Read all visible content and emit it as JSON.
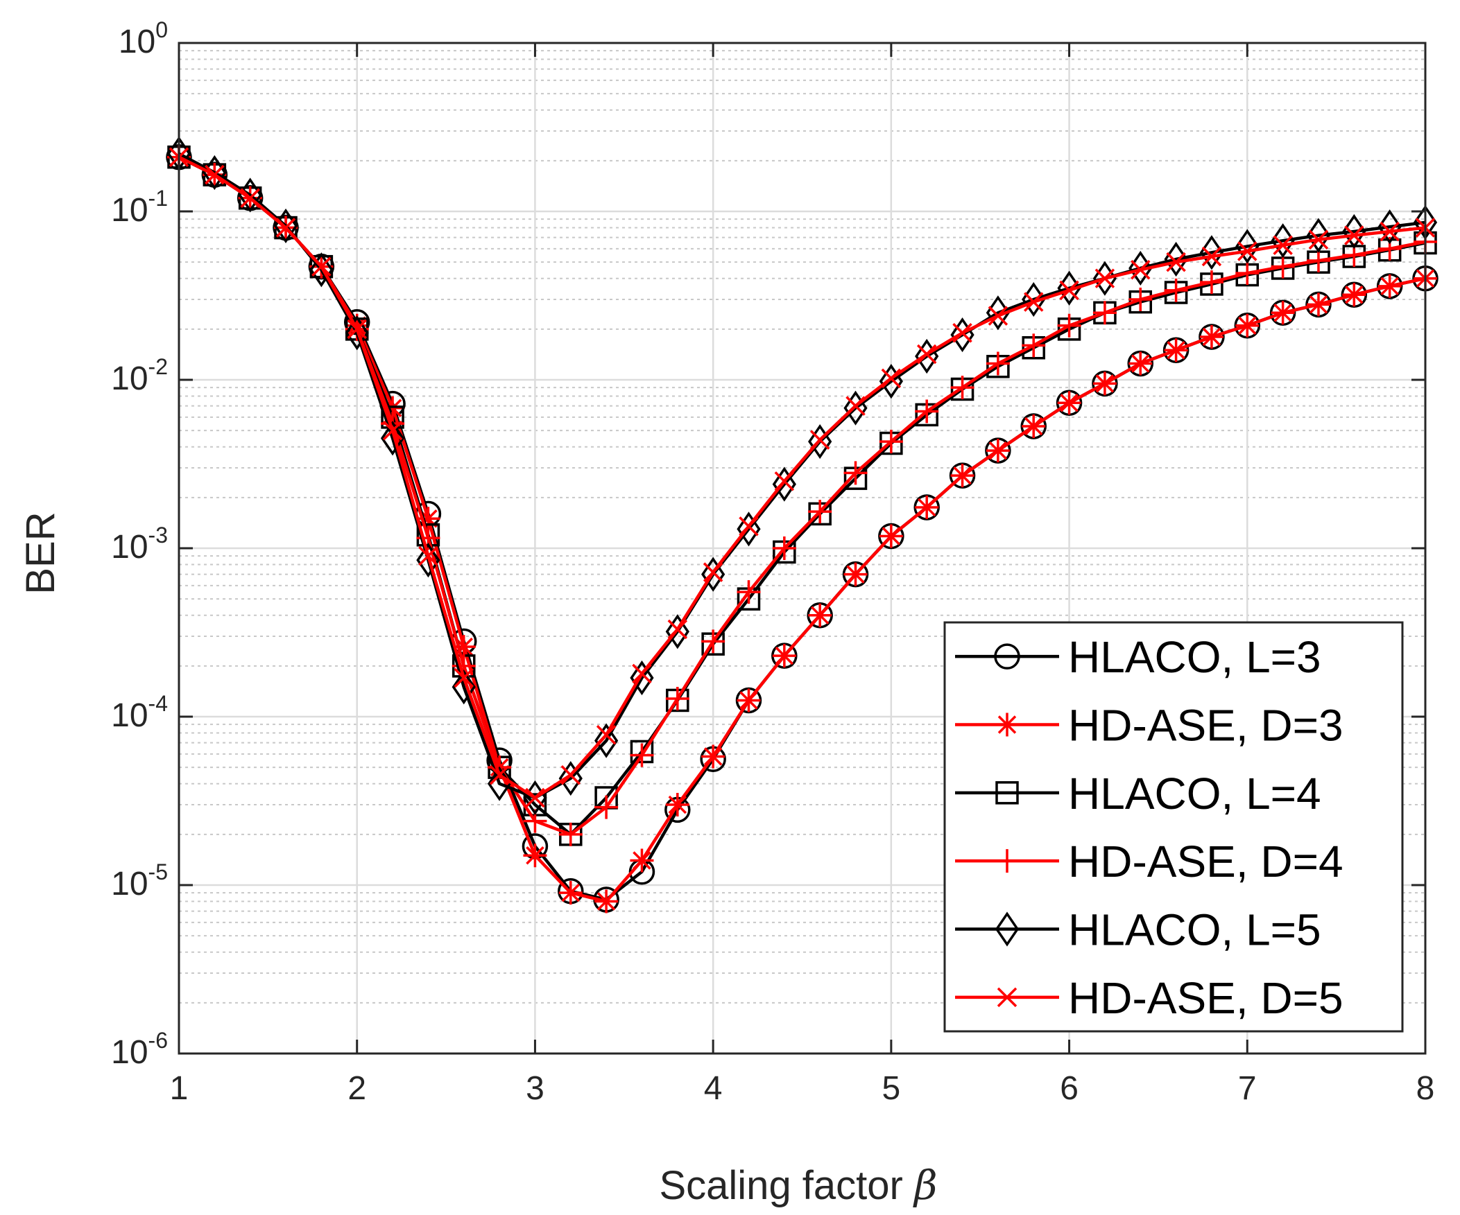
{
  "chart_data": {
    "type": "line",
    "title": "",
    "xlabel": "Scaling factor",
    "xlabel_symbol": "β",
    "ylabel": "BER",
    "xscale": "linear",
    "yscale": "log",
    "xlim": [
      1,
      8
    ],
    "ylim": [
      1e-06,
      1
    ],
    "grid": true,
    "minor_grid_y": true,
    "legend_position": "bottom-right",
    "x_ticks": [
      1,
      2,
      3,
      4,
      5,
      6,
      7,
      8
    ],
    "y_ticks": [
      {
        "base": "10",
        "exp": "-6"
      },
      {
        "base": "10",
        "exp": "-5"
      },
      {
        "base": "10",
        "exp": "-4"
      },
      {
        "base": "10",
        "exp": "-3"
      },
      {
        "base": "10",
        "exp": "-2"
      },
      {
        "base": "10",
        "exp": "-1"
      },
      {
        "base": "10",
        "exp": "0"
      }
    ],
    "x": [
      1.0,
      1.2,
      1.4,
      1.6,
      1.8,
      2.0,
      2.2,
      2.4,
      2.6,
      2.8,
      3.0,
      3.2,
      3.4,
      3.6,
      3.8,
      4.0,
      4.2,
      4.4,
      4.6,
      4.8,
      5.0,
      5.2,
      5.4,
      5.6,
      5.8,
      6.0,
      6.2,
      6.4,
      6.6,
      6.8,
      7.0,
      7.2,
      7.4,
      7.6,
      7.8,
      8.0
    ],
    "series": [
      {
        "name": "HLACO, L=3",
        "color": "#000000",
        "marker": "circle",
        "values": [
          0.21,
          0.165,
          0.12,
          0.08,
          0.047,
          0.022,
          0.0072,
          0.0016,
          0.00028,
          5.5e-05,
          1.7e-05,
          9.2e-06,
          8.2e-06,
          1.2e-05,
          2.8e-05,
          5.6e-05,
          0.000125,
          0.00023,
          0.0004,
          0.0007,
          0.00118,
          0.00175,
          0.0027,
          0.0038,
          0.0053,
          0.0073,
          0.0095,
          0.0125,
          0.015,
          0.018,
          0.021,
          0.025,
          0.028,
          0.032,
          0.036,
          0.04
        ]
      },
      {
        "name": "HD-ASE, D=3",
        "color": "#ff0000",
        "marker": "asterisk",
        "values": [
          0.21,
          0.165,
          0.12,
          0.08,
          0.047,
          0.021,
          0.0068,
          0.0015,
          0.00026,
          5e-05,
          1.5e-05,
          9e-06,
          8e-06,
          1.4e-05,
          3e-05,
          5.8e-05,
          0.000125,
          0.00023,
          0.0004,
          0.0007,
          0.00118,
          0.00175,
          0.0027,
          0.0038,
          0.0053,
          0.0073,
          0.0095,
          0.0125,
          0.015,
          0.018,
          0.021,
          0.025,
          0.028,
          0.032,
          0.036,
          0.04
        ]
      },
      {
        "name": "HLACO, L=4",
        "color": "#000000",
        "marker": "square",
        "values": [
          0.21,
          0.165,
          0.12,
          0.08,
          0.047,
          0.02,
          0.006,
          0.0012,
          0.0002,
          5e-05,
          3e-05,
          2e-05,
          3.3e-05,
          6.2e-05,
          0.000125,
          0.00027,
          0.0005,
          0.00095,
          0.0016,
          0.0026,
          0.0042,
          0.0062,
          0.0088,
          0.012,
          0.0155,
          0.02,
          0.025,
          0.029,
          0.033,
          0.037,
          0.042,
          0.046,
          0.05,
          0.054,
          0.059,
          0.065
        ]
      },
      {
        "name": "HD-ASE, D=4",
        "color": "#ff0000",
        "marker": "plus",
        "values": [
          0.21,
          0.165,
          0.12,
          0.08,
          0.047,
          0.02,
          0.0055,
          0.00115,
          0.0002,
          5e-05,
          2.4e-05,
          2e-05,
          2.9e-05,
          5.9e-05,
          0.000128,
          0.00028,
          0.00055,
          0.001,
          0.00165,
          0.0028,
          0.0043,
          0.0065,
          0.009,
          0.0125,
          0.016,
          0.021,
          0.025,
          0.03,
          0.034,
          0.038,
          0.043,
          0.047,
          0.051,
          0.055,
          0.06,
          0.066
        ]
      },
      {
        "name": "HLACO, L=5",
        "color": "#000000",
        "marker": "diamond",
        "values": [
          0.22,
          0.17,
          0.125,
          0.082,
          0.045,
          0.019,
          0.0045,
          0.00085,
          0.00015,
          4e-05,
          3.3e-05,
          4.3e-05,
          7.2e-05,
          0.00017,
          0.00032,
          0.0007,
          0.0013,
          0.0024,
          0.0043,
          0.0068,
          0.0098,
          0.0138,
          0.0185,
          0.025,
          0.03,
          0.035,
          0.04,
          0.046,
          0.052,
          0.057,
          0.062,
          0.067,
          0.072,
          0.076,
          0.081,
          0.086
        ]
      },
      {
        "name": "HD-ASE, D=5",
        "color": "#ff0000",
        "marker": "x",
        "values": [
          0.21,
          0.165,
          0.12,
          0.08,
          0.047,
          0.02,
          0.005,
          0.0009,
          0.00017,
          4.5e-05,
          3.3e-05,
          4.5e-05,
          7.8e-05,
          0.00018,
          0.00033,
          0.00072,
          0.00135,
          0.0025,
          0.0044,
          0.007,
          0.0102,
          0.0142,
          0.019,
          0.024,
          0.029,
          0.034,
          0.04,
          0.045,
          0.05,
          0.054,
          0.058,
          0.063,
          0.068,
          0.072,
          0.076,
          0.08
        ]
      }
    ]
  }
}
